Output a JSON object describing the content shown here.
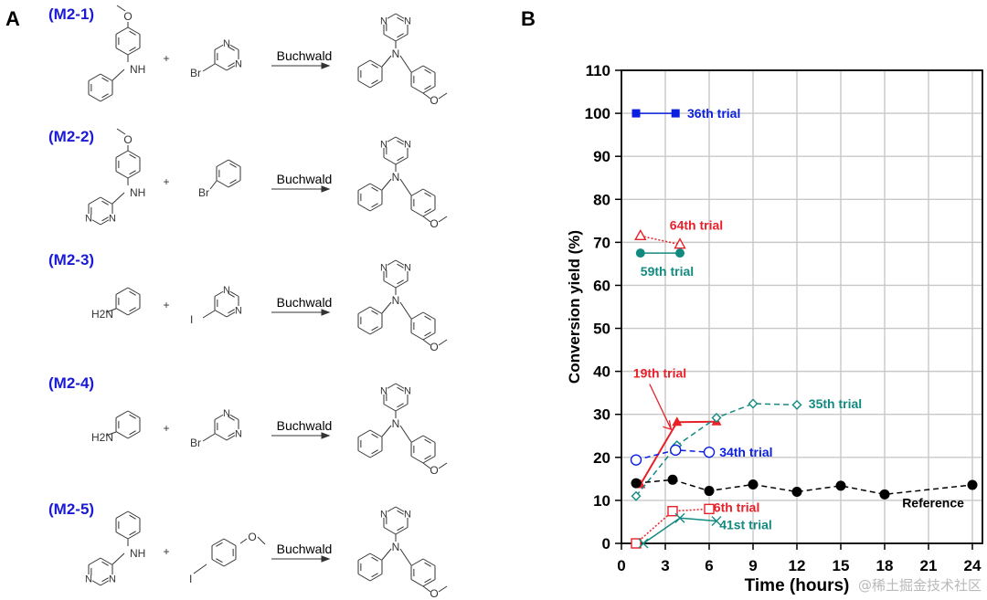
{
  "panels": {
    "a_label": "A",
    "b_label": "B"
  },
  "reactions": [
    {
      "id": "(M2-1)",
      "reactant1": "4-methoxy-N-phenylaniline",
      "reactant2": "5-bromopyrimidine",
      "arrow_label": "Buchwald",
      "product": "N-(4-methoxyphenyl)-N-phenylpyrimidin-5-amine",
      "atoms": {
        "r1_nh": "NH",
        "r2_x": "Br",
        "n": "N",
        "o": "O"
      }
    },
    {
      "id": "(M2-2)",
      "reactant1": "N-(4-methoxyphenyl)pyrimidin-5-amine",
      "reactant2": "bromobenzene",
      "arrow_label": "Buchwald",
      "product": "N-(4-methoxyphenyl)-N-phenylpyrimidin-5-amine",
      "atoms": {
        "r1_nh": "NH",
        "r2_x": "Br",
        "n": "N",
        "o": "O"
      }
    },
    {
      "id": "(M2-3)",
      "reactant1": "aniline",
      "reactant2": "5-iodopyrimidine",
      "arrow_label": "Buchwald",
      "product": "N-(4-methoxyphenyl)-N-phenylpyrimidin-5-amine",
      "atoms": {
        "r1_nh": "H2N",
        "r2_x": "I",
        "n": "N",
        "o": "O"
      }
    },
    {
      "id": "(M2-4)",
      "reactant1": "aniline",
      "reactant2": "5-bromopyrimidine",
      "arrow_label": "Buchwald",
      "product": "N-(4-methoxyphenyl)-N-phenylpyrimidin-5-amine",
      "atoms": {
        "r1_nh": "H2N",
        "r2_x": "Br",
        "n": "N",
        "o": "O"
      }
    },
    {
      "id": "(M2-5)",
      "reactant1": "N-phenylpyrimidin-5-amine",
      "reactant2": "4-iodoanisole",
      "arrow_label": "Buchwald",
      "product": "N-(4-methoxyphenyl)-N-phenylpyrimidin-5-amine",
      "atoms": {
        "r1_nh": "NH",
        "r2_x": "I",
        "n": "N",
        "o": "O"
      }
    }
  ],
  "plus_sign": "+",
  "watermark": "@稀土掘金技术社区",
  "chart_data": {
    "type": "line",
    "title": "",
    "xlabel": "Time (hours)",
    "ylabel": "Conversion yield (%)",
    "xlim": [
      0,
      25
    ],
    "ylim": [
      0,
      110
    ],
    "xticks": [
      0,
      3,
      6,
      9,
      12,
      15,
      18,
      21,
      24
    ],
    "yticks": [
      0,
      10,
      20,
      30,
      40,
      50,
      60,
      70,
      80,
      90,
      100,
      110
    ],
    "grid": true,
    "series": [
      {
        "name": "36th trial",
        "color": "#0a1fe0",
        "marker": "square-filled",
        "line": "solid",
        "x": [
          1,
          3.7
        ],
        "y": [
          100,
          100
        ]
      },
      {
        "name": "64th trial",
        "color": "#e8202a",
        "marker": "triangle-open",
        "line": "dotted",
        "x": [
          1.3,
          4.0
        ],
        "y": [
          71.5,
          69.5
        ]
      },
      {
        "name": "59th trial",
        "color": "#138a80",
        "marker": "circle-filled",
        "line": "solid",
        "x": [
          1.3,
          4.0
        ],
        "y": [
          67.5,
          67.5
        ]
      },
      {
        "name": "19th trial",
        "color": "#e8202a",
        "marker": "triangle-filled",
        "line": "solid",
        "x": [
          1.3,
          3.8,
          6.5
        ],
        "y": [
          13.7,
          28.2,
          28.3
        ]
      },
      {
        "name": "35th trial",
        "color": "#138a80",
        "marker": "diamond-open",
        "line": "dashed",
        "x": [
          1.0,
          3.8,
          6.5,
          9.0,
          12.0
        ],
        "y": [
          11.0,
          22.8,
          29.2,
          32.5,
          32.2
        ]
      },
      {
        "name": "34th trial",
        "color": "#0a1fe0",
        "marker": "circle-open",
        "line": "dashed",
        "x": [
          1.0,
          3.7,
          6.0
        ],
        "y": [
          19.4,
          21.7,
          21.2
        ]
      },
      {
        "name": "Reference",
        "color": "#000000",
        "marker": "circle-filled",
        "line": "dashed",
        "x": [
          1,
          3.5,
          6,
          9,
          12,
          15,
          18,
          24
        ],
        "y": [
          14.0,
          14.8,
          12.2,
          13.7,
          12.0,
          13.4,
          11.4,
          13.6
        ]
      },
      {
        "name": "6th trial",
        "color": "#e8202a",
        "marker": "square-open",
        "line": "dotted",
        "x": [
          1.0,
          3.5,
          6.0
        ],
        "y": [
          0,
          7.5,
          8.0
        ]
      },
      {
        "name": "41st trial",
        "color": "#138a80",
        "marker": "x",
        "line": "solid",
        "x": [
          1.5,
          4.0,
          6.5
        ],
        "y": [
          0,
          5.9,
          5.2
        ]
      }
    ],
    "annotations": [
      {
        "text": "36th trial",
        "series": "36th trial",
        "x": 4.5,
        "y": 100,
        "color": "#0a1fe0"
      },
      {
        "text": "64th trial",
        "series": "64th trial",
        "x": 3.3,
        "y": 74,
        "color": "#e8202a"
      },
      {
        "text": "59th trial",
        "series": "59th trial",
        "x": 1.3,
        "y": 63.3,
        "color": "#138a80"
      },
      {
        "text": "19th trial",
        "series": "19th trial",
        "x": 0.8,
        "y": 39.6,
        "color": "#e8202a",
        "arrow_to": [
          3.4,
          26.5
        ]
      },
      {
        "text": "35th trial",
        "series": "35th trial",
        "x": 12.8,
        "y": 32.5,
        "color": "#138a80"
      },
      {
        "text": "34th trial",
        "series": "34th trial",
        "x": 6.7,
        "y": 21.2,
        "color": "#0a1fe0"
      },
      {
        "text": "Reference",
        "series": "Reference",
        "x": 19.2,
        "y": 9.5,
        "color": "#000000"
      },
      {
        "text": "6th trial",
        "series": "6th trial",
        "x": 6.3,
        "y": 8.4,
        "color": "#e8202a"
      },
      {
        "text": "41st trial",
        "series": "41st trial",
        "x": 6.7,
        "y": 4.4,
        "color": "#138a80"
      }
    ]
  }
}
